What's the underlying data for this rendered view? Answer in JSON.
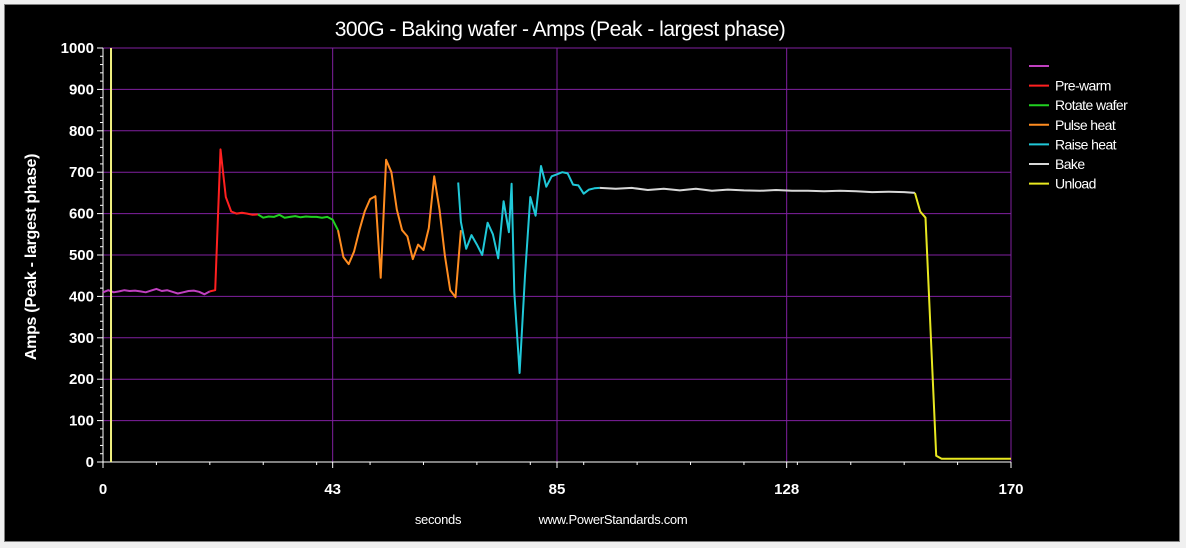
{
  "chart_data": {
    "type": "line",
    "title": "300G - Baking wafer - Amps (Peak - largest phase)",
    "ylabel": "Amps (Peak - largest phase)",
    "xlabel": "seconds",
    "source": "www.PowerStandards.com",
    "xlim": [
      0,
      170
    ],
    "ylim": [
      0,
      1000
    ],
    "xticks": [
      0,
      43,
      85,
      128,
      170
    ],
    "yticks": [
      0,
      100,
      200,
      300,
      400,
      500,
      600,
      700,
      800,
      900,
      1000
    ],
    "grid": true,
    "legend_position": "right",
    "marker": {
      "x": 1.5,
      "color": "#f0f080"
    },
    "series": [
      {
        "name": "",
        "color": "#c040c0",
        "points": [
          [
            0,
            410
          ],
          [
            1,
            415
          ],
          [
            2,
            410
          ],
          [
            3,
            412
          ],
          [
            4,
            415
          ],
          [
            5,
            413
          ],
          [
            6,
            414
          ],
          [
            7,
            412
          ],
          [
            8,
            410
          ],
          [
            9,
            414
          ],
          [
            10,
            418
          ],
          [
            11,
            413
          ],
          [
            12,
            415
          ],
          [
            13,
            411
          ],
          [
            14,
            407
          ],
          [
            15,
            410
          ],
          [
            16,
            413
          ],
          [
            17,
            414
          ],
          [
            18,
            411
          ],
          [
            19,
            405
          ],
          [
            20,
            412
          ]
        ]
      },
      {
        "name": "Pre-warm",
        "color": "#ff2020",
        "points": [
          [
            20,
            412
          ],
          [
            21,
            415
          ],
          [
            22,
            755
          ],
          [
            23,
            640
          ],
          [
            24,
            605
          ],
          [
            25,
            600
          ],
          [
            26,
            602
          ],
          [
            27,
            600
          ],
          [
            28,
            597
          ],
          [
            29,
            598
          ]
        ]
      },
      {
        "name": "Rotate wafer",
        "color": "#20d020",
        "points": [
          [
            29,
            598
          ],
          [
            30,
            590
          ],
          [
            31,
            593
          ],
          [
            32,
            592
          ],
          [
            33,
            597
          ],
          [
            34,
            590
          ],
          [
            35,
            592
          ],
          [
            36,
            594
          ],
          [
            37,
            591
          ],
          [
            38,
            593
          ],
          [
            39,
            592
          ],
          [
            40,
            592
          ],
          [
            41,
            590
          ],
          [
            42,
            592
          ],
          [
            43,
            585
          ],
          [
            44,
            560
          ]
        ]
      },
      {
        "name": "Pulse heat",
        "color": "#ff8c20",
        "points": [
          [
            44,
            560
          ],
          [
            45,
            495
          ],
          [
            46,
            478
          ],
          [
            47,
            508
          ],
          [
            48,
            560
          ],
          [
            49,
            605
          ],
          [
            50,
            635
          ],
          [
            51,
            642
          ],
          [
            52,
            445
          ],
          [
            53,
            730
          ],
          [
            54,
            700
          ],
          [
            55,
            610
          ],
          [
            56,
            560
          ],
          [
            57,
            545
          ],
          [
            58,
            490
          ],
          [
            59,
            525
          ],
          [
            60,
            512
          ],
          [
            61,
            565
          ],
          [
            62,
            690
          ],
          [
            63,
            610
          ],
          [
            64,
            500
          ],
          [
            65,
            415
          ],
          [
            66,
            398
          ],
          [
            67,
            560
          ]
        ]
      },
      {
        "name": "Raise heat",
        "color": "#20c8d8",
        "points": [
          [
            66.5,
            675
          ],
          [
            67,
            580
          ],
          [
            68,
            515
          ],
          [
            69,
            548
          ],
          [
            70,
            525
          ],
          [
            71,
            500
          ],
          [
            72,
            578
          ],
          [
            73,
            550
          ],
          [
            74,
            492
          ],
          [
            75,
            630
          ],
          [
            76,
            555
          ],
          [
            76.5,
            672
          ],
          [
            77,
            410
          ],
          [
            78,
            215
          ],
          [
            79,
            450
          ],
          [
            80,
            640
          ],
          [
            81,
            595
          ],
          [
            82,
            715
          ],
          [
            83,
            665
          ],
          [
            84,
            690
          ],
          [
            85,
            695
          ],
          [
            86,
            700
          ],
          [
            87,
            697
          ],
          [
            88,
            670
          ],
          [
            89,
            668
          ],
          [
            90,
            648
          ],
          [
            91,
            658
          ],
          [
            92,
            661
          ],
          [
            93,
            662
          ]
        ]
      },
      {
        "name": "Bake",
        "color": "#d8d8d8",
        "points": [
          [
            93,
            662
          ],
          [
            96,
            660
          ],
          [
            99,
            662
          ],
          [
            102,
            657
          ],
          [
            105,
            660
          ],
          [
            108,
            656
          ],
          [
            111,
            660
          ],
          [
            114,
            655
          ],
          [
            117,
            658
          ],
          [
            120,
            656
          ],
          [
            123,
            655
          ],
          [
            126,
            657
          ],
          [
            129,
            655
          ],
          [
            132,
            655
          ],
          [
            135,
            654
          ],
          [
            138,
            655
          ],
          [
            141,
            654
          ],
          [
            144,
            652
          ],
          [
            147,
            653
          ],
          [
            150,
            652
          ],
          [
            152,
            650
          ]
        ]
      },
      {
        "name": "Unload",
        "color": "#e8e820",
        "points": [
          [
            152,
            650
          ],
          [
            153,
            605
          ],
          [
            154,
            590
          ],
          [
            155,
            300
          ],
          [
            156,
            15
          ],
          [
            157,
            8
          ],
          [
            160,
            8
          ],
          [
            165,
            8
          ],
          [
            170,
            8
          ]
        ]
      }
    ]
  }
}
